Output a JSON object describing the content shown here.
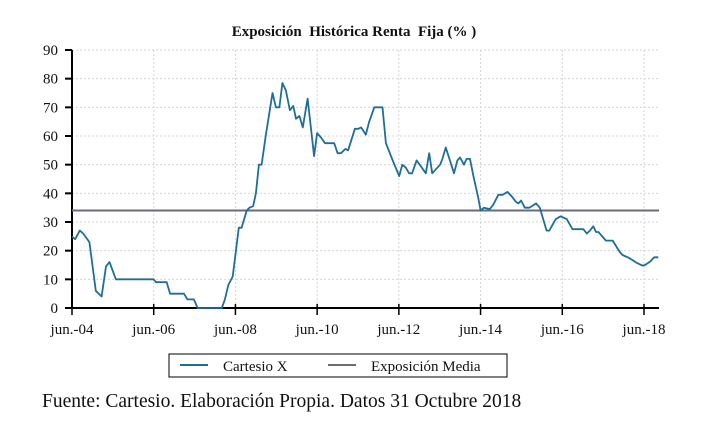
{
  "chart_data": {
    "type": "line",
    "title": "Exposición  Histórica Renta  Fija (% )",
    "xlabel": "",
    "ylabel": "",
    "x_unit": "months since jun.-04",
    "xlim": [
      0,
      172.2
    ],
    "ylim": [
      0,
      90
    ],
    "grid": true,
    "y_ticks": [
      0,
      10,
      20,
      30,
      40,
      50,
      60,
      70,
      80,
      90
    ],
    "x_ticks": [
      {
        "label": "jun.-04",
        "month": 0
      },
      {
        "label": "jun.-06",
        "month": 24
      },
      {
        "label": "jun.-08",
        "month": 48
      },
      {
        "label": "jun.-10",
        "month": 72
      },
      {
        "label": "jun.-12",
        "month": 96
      },
      {
        "label": "jun.-14",
        "month": 120
      },
      {
        "label": "jun.-16",
        "month": 144
      },
      {
        "label": "jun.-18",
        "month": 168
      }
    ],
    "legend_position": "bottom",
    "series": [
      {
        "name": "Cartesio X",
        "color": "#1f6e99",
        "x": [
          0,
          0.9,
          2.3,
          3.3,
          5.1,
          7.0,
          8.7,
          10,
          11,
          12.9,
          23.9,
          24.7,
          27.8,
          28.8,
          32.9,
          33.9,
          35.8,
          36.9,
          44,
          44.9,
          45.9,
          47.2,
          49,
          49.8,
          51.3,
          52.1,
          53.2,
          54,
          54.9,
          55.7,
          56.9,
          58.9,
          59.9,
          60.9,
          61.8,
          62.8,
          64,
          65,
          65.8,
          66.8,
          67.8,
          69.2,
          71.1,
          72,
          73.1,
          74.3,
          77,
          78,
          79,
          80.3,
          81.1,
          83.1,
          84.1,
          84.9,
          86.3,
          87.3,
          88.8,
          91.2,
          92.2,
          94.2,
          96.1,
          97,
          98,
          99,
          99.9,
          101.2,
          102.7,
          103.9,
          104.9,
          105.8,
          108.1,
          108.8,
          109.8,
          111,
          112.2,
          113.2,
          114,
          115.1,
          115.9,
          116.9,
          117.9,
          119.3,
          120,
          121,
          122.7,
          123.7,
          125.2,
          126.5,
          127.9,
          129.1,
          130.4,
          131.1,
          131.9,
          133,
          134.3,
          136.3,
          137.4,
          139.4,
          140.2,
          142.1,
          143.5,
          145.3,
          147,
          150.2,
          151.2,
          152.1,
          153.1,
          153.9,
          154.6,
          156.8,
          158.8,
          160.9,
          161.7,
          163.7,
          165.8,
          167.5,
          168.3,
          169.8,
          171,
          172.2
        ],
        "values": [
          24.9,
          24,
          27,
          26,
          23,
          6,
          4,
          14.5,
          16,
          10,
          10,
          9,
          9,
          5,
          5,
          3,
          3,
          0,
          0,
          3,
          8,
          11,
          28,
          28,
          34,
          35,
          35.5,
          40,
          50,
          50,
          60,
          75,
          70,
          70,
          78.5,
          76,
          69,
          70.5,
          66,
          67,
          63,
          73,
          53,
          61,
          59.5,
          57.5,
          57.5,
          54,
          54,
          55.5,
          55,
          62.5,
          62.5,
          63,
          60.5,
          65,
          70,
          70,
          57.5,
          51.5,
          46,
          50,
          49,
          47,
          47,
          51.5,
          49,
          47,
          54,
          47,
          50,
          52,
          56,
          51.5,
          47,
          51.5,
          52.5,
          50,
          52,
          52,
          46,
          38.5,
          34,
          35,
          34.5,
          36,
          39.5,
          39.5,
          40.5,
          39,
          37,
          36.5,
          37.5,
          35,
          35,
          36.5,
          35,
          27,
          27,
          31,
          32,
          31,
          27.5,
          27.5,
          26,
          27,
          28.5,
          26.5,
          26.5,
          23.5,
          23.5,
          19.5,
          18.5,
          17.4,
          15.8,
          14.8,
          15,
          16.2,
          17.7,
          17.7
        ]
      },
      {
        "name": "Exposición Media",
        "color": "#6b6b7e",
        "constant": 34
      }
    ]
  },
  "footer": "Fuente: Cartesio. Elaboración Propia. Datos 31 Octubre 2018"
}
